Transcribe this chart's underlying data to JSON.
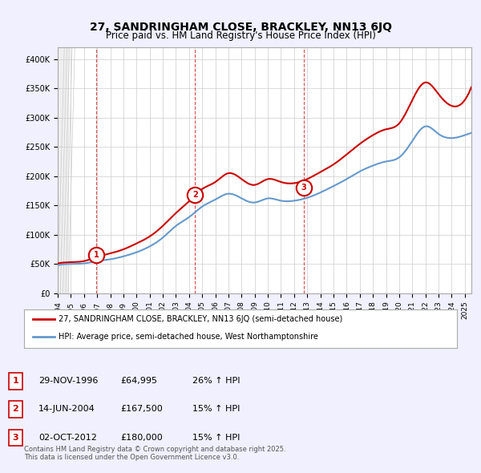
{
  "title": "27, SANDRINGHAM CLOSE, BRACKLEY, NN13 6JQ",
  "subtitle": "Price paid vs. HM Land Registry's House Price Index (HPI)",
  "legend_line1": "27, SANDRINGHAM CLOSE, BRACKLEY, NN13 6JQ (semi-detached house)",
  "legend_line2": "HPI: Average price, semi-detached house, West Northamptonshire",
  "footer": "Contains HM Land Registry data © Crown copyright and database right 2025.\nThis data is licensed under the Open Government Licence v3.0.",
  "sale_color": "#cc0000",
  "hpi_color": "#6699cc",
  "background_color": "#f0f0ff",
  "plot_bg_color": "#ffffff",
  "grid_color": "#cccccc",
  "ylim": [
    0,
    420000
  ],
  "yticks": [
    0,
    50000,
    100000,
    150000,
    200000,
    250000,
    300000,
    350000,
    400000
  ],
  "xlim_start": 1994.0,
  "xlim_end": 2025.5,
  "sales": [
    {
      "year": 1996.92,
      "price": 64995,
      "label": "1"
    },
    {
      "year": 2004.45,
      "price": 167500,
      "label": "2"
    },
    {
      "year": 2012.75,
      "price": 180000,
      "label": "3"
    }
  ],
  "sale_annotations": [
    {
      "label": "1",
      "date": "29-NOV-1996",
      "price": "£64,995",
      "hpi": "26% ↑ HPI"
    },
    {
      "label": "2",
      "date": "14-JUN-2004",
      "price": "£167,500",
      "hpi": "15% ↑ HPI"
    },
    {
      "label": "3",
      "date": "02-OCT-2012",
      "price": "£180,000",
      "hpi": "15% ↑ HPI"
    }
  ],
  "vline_years": [
    1996.92,
    2004.45,
    2012.75
  ],
  "hpi_data_years": [
    1994,
    1995,
    1996,
    1997,
    1998,
    1999,
    2000,
    2001,
    2002,
    2003,
    2004,
    2005,
    2006,
    2007,
    2008,
    2009,
    2010,
    2011,
    2012,
    2013,
    2014,
    2015,
    2016,
    2017,
    2018,
    2019,
    2020,
    2021,
    2022,
    2023,
    2024,
    2025
  ],
  "hpi_data_values": [
    48000,
    50000,
    51000,
    55000,
    58000,
    63000,
    70000,
    80000,
    95000,
    115000,
    130000,
    148000,
    160000,
    170000,
    162000,
    155000,
    162000,
    158000,
    158000,
    163000,
    172000,
    183000,
    195000,
    208000,
    218000,
    225000,
    232000,
    260000,
    285000,
    272000,
    265000,
    270000
  ],
  "price_data_years": [
    1994,
    1995,
    1996,
    1997,
    1998,
    1999,
    2000,
    2001,
    2002,
    2003,
    2004,
    2005,
    2006,
    2007,
    2008,
    2009,
    2010,
    2011,
    2012,
    2013,
    2014,
    2015,
    2016,
    2017,
    2018,
    2019,
    2020,
    2021,
    2022,
    2023,
    2024,
    2025
  ],
  "price_data_values": [
    51000,
    53000,
    55000,
    62000,
    68000,
    75000,
    85000,
    97000,
    115000,
    137000,
    157000,
    178000,
    190000,
    205000,
    195000,
    185000,
    195000,
    190000,
    188000,
    195000,
    207000,
    220000,
    237000,
    255000,
    270000,
    280000,
    290000,
    330000,
    360000,
    340000,
    320000,
    330000
  ]
}
